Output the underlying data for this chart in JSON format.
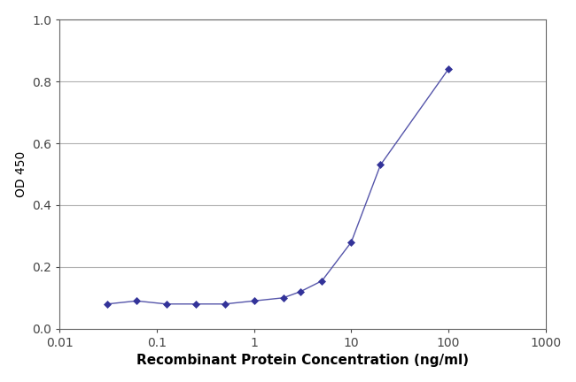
{
  "x": [
    0.031,
    0.062,
    0.125,
    0.25,
    0.5,
    1.0,
    2.0,
    3.0,
    5.0,
    10.0,
    20.0,
    100.0
  ],
  "y": [
    0.08,
    0.09,
    0.08,
    0.08,
    0.08,
    0.09,
    0.1,
    0.12,
    0.155,
    0.28,
    0.53,
    0.84
  ],
  "line_color": "#5555aa",
  "marker_color": "#333399",
  "marker": "D",
  "marker_size": 4,
  "line_width": 1.0,
  "xlabel": "Recombinant Protein Concentration (ng/ml)",
  "ylabel": "OD 450",
  "xlim": [
    0.01,
    1000
  ],
  "ylim": [
    0.0,
    1.0
  ],
  "yticks": [
    0.0,
    0.2,
    0.4,
    0.6,
    0.8,
    1.0
  ],
  "xtick_labels": [
    "0.01",
    "0.1",
    "1",
    "10",
    "100",
    "1000"
  ],
  "xtick_vals": [
    0.01,
    0.1,
    1,
    10,
    100,
    1000
  ],
  "background_color": "#ffffff",
  "plot_bg_color": "#ffffff",
  "grid_color": "#b0b0b0",
  "spine_color": "#666666",
  "xlabel_fontsize": 11,
  "ylabel_fontsize": 10,
  "tick_fontsize": 10
}
